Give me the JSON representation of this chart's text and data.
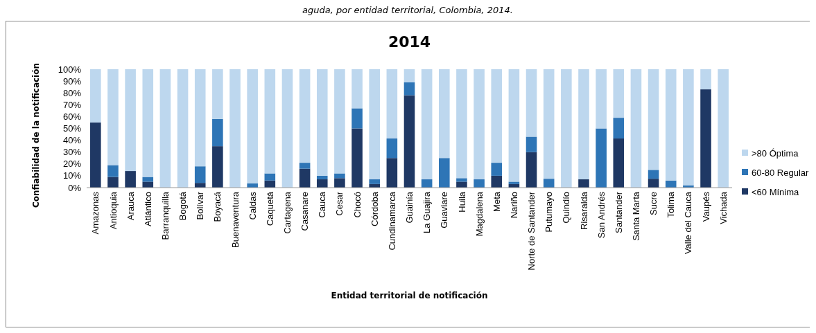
{
  "chart_data": {
    "type": "bar",
    "stacked": true,
    "title": "2014",
    "annotations": [
      "aguda, por entidad territorial, Colombia, 2014."
    ],
    "xlabel": "Entidad territorial de notificación",
    "ylabel": "Confiabilidad de la notificación",
    "categories": [
      "Amazonas",
      "Antioquia",
      "Arauca",
      "Atlántico",
      "Barranquilla",
      "Bogotá",
      "Bolívar",
      "Boyacá",
      "Buenaventura",
      "Caldas",
      "Caquetá",
      "Cartagena",
      "Casanare",
      "Cauca",
      "Cesar",
      "Chocó",
      "Córdoba",
      "Cundinamarca",
      "Guainía",
      "La Guajira",
      "Guaviare",
      "Huila",
      "Magdalena",
      "Meta",
      "Nariño",
      "Norte de Santander",
      "Putumayo",
      "Quindío",
      "Risaralda",
      "San Andrés",
      "Santander",
      "Santa Marta",
      "Sucre",
      "Tolima",
      "Valle del Cauca",
      "Vaupés",
      "Vichada"
    ],
    "series": [
      {
        "name": "<60 Mínima",
        "color": "#1f3864",
        "values": [
          55,
          9,
          14,
          5,
          0,
          0,
          4,
          35,
          0,
          0,
          6,
          0,
          16,
          7,
          8,
          50,
          3,
          25,
          78,
          0,
          0,
          5,
          0,
          10,
          3,
          30,
          0,
          0,
          7,
          0,
          41.5,
          0,
          7.5,
          0,
          0,
          83,
          0
        ]
      },
      {
        "name": "60-80 Regular",
        "color": "#2e75b6",
        "values": [
          0,
          10,
          0,
          4,
          0,
          0,
          14,
          23,
          0,
          3.5,
          6,
          0,
          5,
          3,
          4,
          17,
          4,
          16.5,
          11,
          7,
          25,
          3,
          7,
          11,
          2,
          13,
          7.5,
          0,
          0,
          50,
          17.5,
          0,
          7.5,
          6,
          2,
          0,
          0
        ]
      },
      {
        "name": ">80 Óptima",
        "color": "#bdd7ee",
        "values": [
          45,
          81,
          86,
          91,
          100,
          100,
          82,
          42,
          100,
          96.5,
          88,
          100,
          79,
          90,
          88,
          33,
          93,
          58.5,
          11,
          93,
          75,
          92,
          93,
          79,
          95,
          57,
          92.5,
          100,
          93,
          50,
          41,
          100,
          85,
          94,
          98,
          17,
          100
        ]
      }
    ],
    "ylim": [
      0,
      100
    ],
    "yticks": [
      {
        "value": 0,
        "label": "0%"
      },
      {
        "value": 10,
        "label": "10%"
      },
      {
        "value": 20,
        "label": "20%"
      },
      {
        "value": 30,
        "label": "30%"
      },
      {
        "value": 40,
        "label": "40%"
      },
      {
        "value": 50,
        "label": "50%"
      },
      {
        "value": 60,
        "label": "60%"
      },
      {
        "value": 70,
        "label": "70%"
      },
      {
        "value": 80,
        "label": "80%"
      },
      {
        "value": 90,
        "label": "90%"
      },
      {
        "value": 100,
        "label": "100%"
      }
    ],
    "legend": "right",
    "grid": false
  }
}
